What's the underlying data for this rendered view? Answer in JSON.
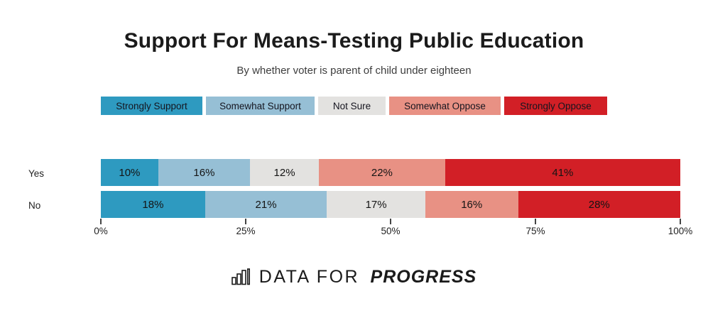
{
  "header": {
    "title": "Support For Means-Testing Public Education",
    "subtitle": "By whether voter is parent of child under eighteen"
  },
  "chart_data": {
    "type": "bar",
    "orientation": "horizontal",
    "stacked": true,
    "title": "Support For Means-Testing Public Education",
    "subtitle": "By whether voter is parent of child under eighteen",
    "categories": [
      "Yes",
      "No"
    ],
    "series": [
      {
        "name": "Strongly Support",
        "color": "#2E9AC0",
        "values": [
          10,
          18
        ]
      },
      {
        "name": "Somewhat Support",
        "color": "#96BFD5",
        "values": [
          16,
          21
        ]
      },
      {
        "name": "Not Sure",
        "color": "#E3E2E0",
        "values": [
          12,
          17
        ]
      },
      {
        "name": "Somewhat Oppose",
        "color": "#E89184",
        "values": [
          22,
          16
        ]
      },
      {
        "name": "Strongly Oppose",
        "color": "#D21F26",
        "values": [
          41,
          28
        ]
      }
    ],
    "value_suffix": "%",
    "xlim": [
      0,
      100
    ],
    "x_tick_values": [
      0,
      25,
      50,
      75,
      100
    ],
    "x_ticks": [
      "0%",
      "25%",
      "50%",
      "75%",
      "100%"
    ],
    "legend_position": "top",
    "grid": false,
    "label_color": "#141414"
  },
  "footer": {
    "logo_icon": "bar-chart-icon",
    "brand_prefix": "DATA FOR",
    "brand_suffix": "PROGRESS"
  }
}
